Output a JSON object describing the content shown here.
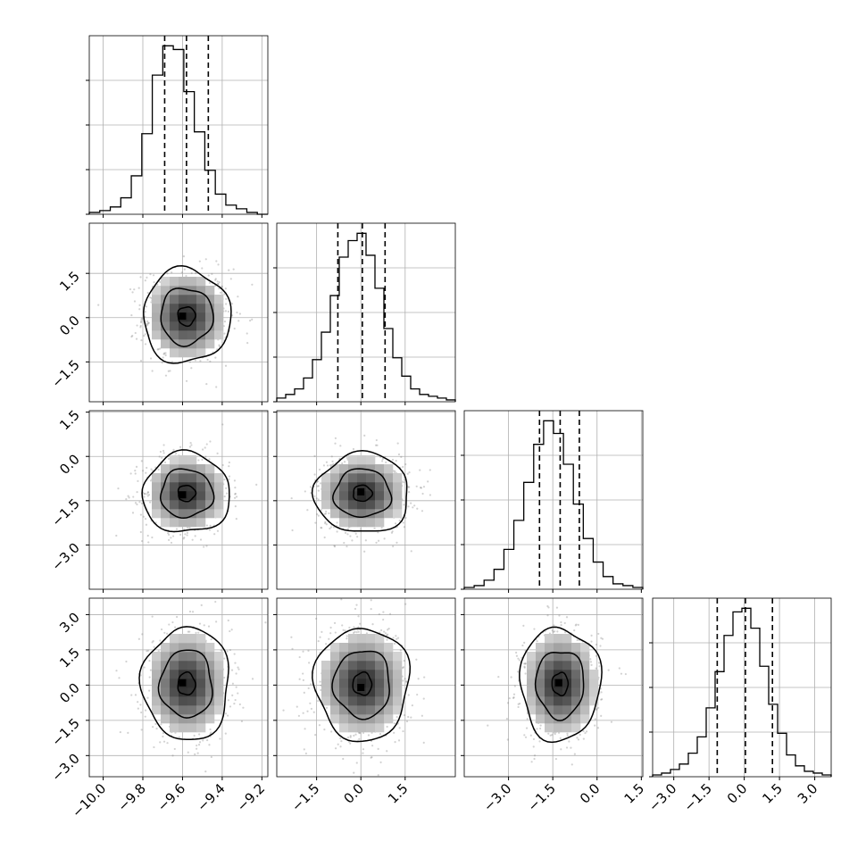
{
  "chart_data": {
    "type": "corner",
    "description_of_values": "posterior samples corner plot of 4 parameters with 1D marginal histograms and 2D density contours",
    "parameters": [
      {
        "index": 0,
        "median": -9.58,
        "q16": -9.69,
        "q84": -9.47,
        "std": 0.11,
        "range": [
          -10.07,
          -9.17
        ],
        "ticks": [
          -10.0,
          -9.8,
          -9.6,
          -9.4,
          -9.2
        ],
        "tick_labels": [
          "−10.0",
          "−9.8",
          "−9.6",
          "−9.4",
          "−9.2"
        ]
      },
      {
        "index": 1,
        "median": 0.05,
        "q16": -0.78,
        "q84": 0.82,
        "std": 0.8,
        "range": [
          -2.85,
          3.2
        ],
        "ticks": [
          -1.5,
          0.0,
          1.5
        ],
        "tick_labels": [
          "−1.5",
          "0.0",
          "1.5"
        ]
      },
      {
        "index": 2,
        "median": -1.25,
        "q16": -1.95,
        "q84": -0.6,
        "std": 0.68,
        "range": [
          -4.5,
          1.55
        ],
        "ticks": [
          -3.0,
          -1.5,
          0.0,
          1.5
        ],
        "tick_labels": [
          "−3.0",
          "−1.5",
          "0.0",
          "1.5"
        ]
      },
      {
        "index": 3,
        "median": 0.05,
        "q16": -1.15,
        "q84": 1.2,
        "std": 1.2,
        "range": [
          -3.9,
          3.7
        ],
        "ticks": [
          -3.0,
          -1.5,
          0.0,
          1.5,
          3.0
        ],
        "tick_labels": [
          "−3.0",
          "−1.5",
          "0.0",
          "1.5",
          "3.0"
        ]
      }
    ],
    "histograms": [
      {
        "param": 0,
        "edges_range": [
          -10.07,
          -9.17
        ],
        "counts": [
          1,
          2,
          4,
          9,
          21,
          44,
          76,
          92,
          90,
          67,
          45,
          24,
          11,
          5,
          3,
          1,
          0
        ]
      },
      {
        "param": 1,
        "edges_range": [
          -2.85,
          3.2
        ],
        "counts": [
          2,
          4,
          7,
          13,
          23,
          38,
          58,
          79,
          88,
          92,
          80,
          62,
          40,
          24,
          14,
          7,
          4,
          3,
          2,
          1
        ]
      },
      {
        "param": 2,
        "edges_range": [
          -4.5,
          1.55
        ],
        "counts": [
          1,
          2,
          5,
          11,
          22,
          38,
          59,
          80,
          93,
          86,
          69,
          47,
          28,
          15,
          7,
          3,
          2,
          1
        ]
      },
      {
        "param": 3,
        "edges_range": [
          -3.9,
          3.7
        ],
        "counts": [
          1,
          2,
          4,
          7,
          13,
          22,
          38,
          58,
          78,
          91,
          93,
          82,
          61,
          40,
          24,
          12,
          6,
          3,
          2,
          1
        ]
      }
    ],
    "pairs": [
      {
        "x_param": 0,
        "y_param": 1,
        "contour_levels": [
          0.4,
          1.2,
          2.0
        ],
        "mode": [
          -9.6,
          0.05
        ]
      },
      {
        "x_param": 0,
        "y_param": 2,
        "contour_levels": [
          0.4,
          1.2,
          2.0
        ],
        "mode": [
          -9.6,
          -1.3
        ]
      },
      {
        "x_param": 1,
        "y_param": 2,
        "contour_levels": [
          0.4,
          1.2,
          2.0
        ],
        "mode": [
          0.0,
          -1.2
        ]
      },
      {
        "x_param": 0,
        "y_param": 3,
        "contour_levels": [
          0.4,
          1.2,
          2.0
        ],
        "mode": [
          -9.6,
          0.1
        ]
      },
      {
        "x_param": 1,
        "y_param": 3,
        "contour_levels": [
          0.4,
          1.2,
          2.0
        ],
        "mode": [
          0.0,
          -0.1
        ]
      },
      {
        "x_param": 2,
        "y_param": 3,
        "contour_levels": [
          0.4,
          1.2,
          2.0
        ],
        "mode": [
          -1.3,
          0.1
        ]
      }
    ],
    "grid": true,
    "colors": {
      "density": "#000000",
      "points": "#7f7f7f",
      "grid": "#b0b0b0"
    }
  }
}
